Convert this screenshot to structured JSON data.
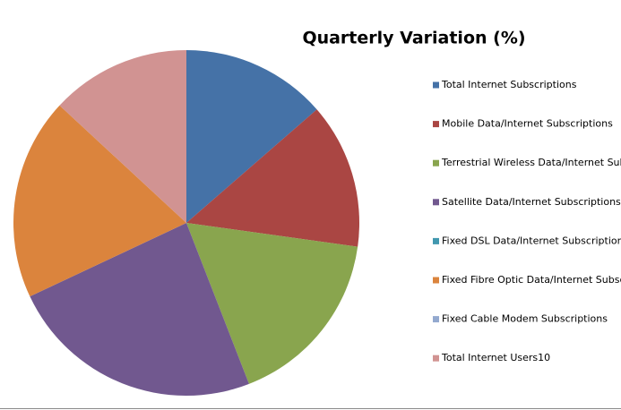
{
  "chart_data": {
    "type": "pie",
    "title": "Quarterly Variation (%)",
    "categories": [
      "Total Internet Subscriptions",
      "Mobile Data/Internet Subscriptions",
      "Terrestrial Wireless Data/Internet Subscriptions",
      "Satellite Data/Internet Subscriptions",
      "Fixed DSL Data/Internet Subscriptions",
      "Fixed Fibre Optic Data/Internet Subscriptions",
      "Fixed Cable Modem Subscriptions",
      "Total Internet Users10"
    ],
    "values": [
      13.6,
      13.6,
      16.9,
      23.9,
      0,
      18.9,
      0,
      13.1
    ],
    "colors": [
      "#4572a7",
      "#aa4643",
      "#89a54e",
      "#71588f",
      "#4198af",
      "#db843d",
      "#93a9cf",
      "#d19392"
    ],
    "legend": "right"
  }
}
